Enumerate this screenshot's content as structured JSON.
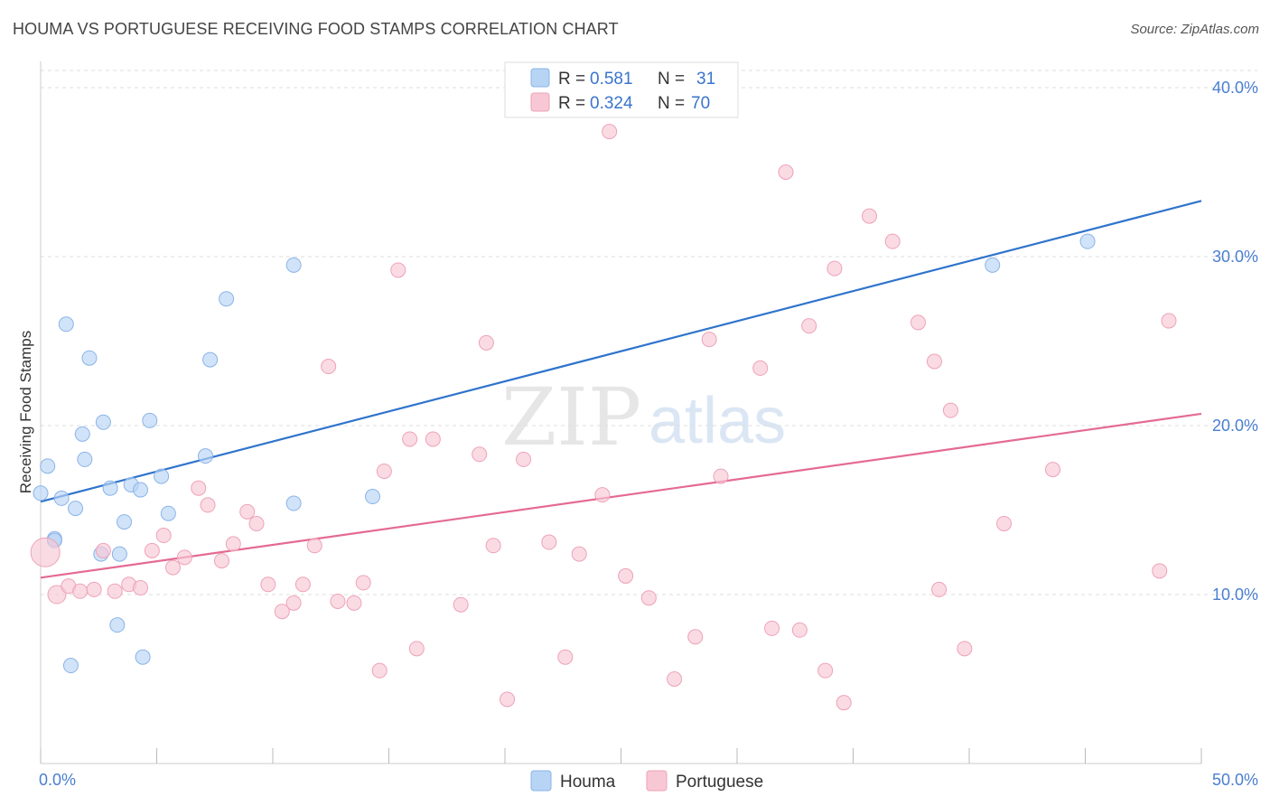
{
  "title": "HOUMA VS PORTUGUESE RECEIVING FOOD STAMPS CORRELATION CHART",
  "source": "Source: ZipAtlas.com",
  "watermark": {
    "zip": "ZIP",
    "atlas": "atlas"
  },
  "colors": {
    "houma_fill": "#b8d4f5",
    "houma_stroke": "#8ab4e8",
    "houma_line": "#2f74cc",
    "port_fill": "#f8c7d5",
    "port_stroke": "#eea2b8",
    "port_line": "#e46a94",
    "tick_text": "#4a7ed0",
    "grid": "#dddddd"
  },
  "legend": {
    "rows": [
      {
        "r_label": "R =",
        "r_value": "0.581",
        "n_label": "N =",
        "n_value": "31"
      },
      {
        "r_label": "R =",
        "r_value": "0.324",
        "n_label": "N =",
        "n_value": "70"
      }
    ]
  },
  "chart_data": {
    "type": "scatter",
    "title": "HOUMA VS PORTUGUESE RECEIVING FOOD STAMPS CORRELATION CHART",
    "xlabel": "",
    "ylabel": "Receiving Food Stamps",
    "xlim": [
      0,
      50
    ],
    "ylim": [
      0,
      40
    ],
    "x_tick_labels": [
      "0.0%",
      "50.0%"
    ],
    "y_ticks": [
      10,
      20,
      30,
      40
    ],
    "y_tick_labels": [
      "10.0%",
      "20.0%",
      "30.0%",
      "40.0%"
    ],
    "grid": true,
    "legend_position": "top-center",
    "series": [
      {
        "name": "Houma",
        "r": 0.581,
        "n": 31,
        "trend": [
          [
            0,
            15.5
          ],
          [
            50,
            33.3
          ]
        ],
        "points": [
          [
            0.0,
            16.0
          ],
          [
            0.3,
            17.6
          ],
          [
            0.6,
            13.3
          ],
          [
            0.9,
            15.7
          ],
          [
            1.1,
            26.0
          ],
          [
            1.3,
            5.8
          ],
          [
            1.5,
            15.1
          ],
          [
            1.8,
            19.5
          ],
          [
            1.9,
            18.0
          ],
          [
            2.1,
            24.0
          ],
          [
            2.7,
            20.2
          ],
          [
            2.6,
            12.4
          ],
          [
            3.0,
            16.3
          ],
          [
            3.3,
            8.2
          ],
          [
            3.4,
            12.4
          ],
          [
            3.6,
            14.3
          ],
          [
            3.9,
            16.5
          ],
          [
            4.3,
            16.2
          ],
          [
            4.4,
            6.3
          ],
          [
            4.7,
            20.3
          ],
          [
            5.2,
            17.0
          ],
          [
            5.5,
            14.8
          ],
          [
            7.1,
            18.2
          ],
          [
            7.3,
            23.9
          ],
          [
            8.0,
            27.5
          ],
          [
            10.9,
            29.5
          ],
          [
            10.9,
            15.4
          ],
          [
            14.3,
            15.8
          ],
          [
            41.0,
            29.5
          ],
          [
            45.1,
            30.9
          ],
          [
            0.6,
            13.2
          ]
        ]
      },
      {
        "name": "Portuguese",
        "r": 0.324,
        "n": 70,
        "trend": [
          [
            0,
            11.0
          ],
          [
            50,
            20.7
          ]
        ],
        "points": [
          [
            0.2,
            12.5
          ],
          [
            0.7,
            10.0
          ],
          [
            1.2,
            10.5
          ],
          [
            1.7,
            10.2
          ],
          [
            2.3,
            10.3
          ],
          [
            2.7,
            12.6
          ],
          [
            3.2,
            10.2
          ],
          [
            3.8,
            10.6
          ],
          [
            4.3,
            10.4
          ],
          [
            4.8,
            12.6
          ],
          [
            5.3,
            13.5
          ],
          [
            5.7,
            11.6
          ],
          [
            6.2,
            12.2
          ],
          [
            6.8,
            16.3
          ],
          [
            7.2,
            15.3
          ],
          [
            7.8,
            12.0
          ],
          [
            8.3,
            13.0
          ],
          [
            8.9,
            14.9
          ],
          [
            9.3,
            14.2
          ],
          [
            9.8,
            10.6
          ],
          [
            10.4,
            9.0
          ],
          [
            10.9,
            9.5
          ],
          [
            11.3,
            10.6
          ],
          [
            11.8,
            12.9
          ],
          [
            12.4,
            23.5
          ],
          [
            12.8,
            9.6
          ],
          [
            13.5,
            9.5
          ],
          [
            13.9,
            10.7
          ],
          [
            14.6,
            5.5
          ],
          [
            14.8,
            17.3
          ],
          [
            15.4,
            29.2
          ],
          [
            15.9,
            19.2
          ],
          [
            16.2,
            6.8
          ],
          [
            16.9,
            19.2
          ],
          [
            18.1,
            9.4
          ],
          [
            18.9,
            18.3
          ],
          [
            19.2,
            24.9
          ],
          [
            19.5,
            12.9
          ],
          [
            20.1,
            3.8
          ],
          [
            20.8,
            18.0
          ],
          [
            21.9,
            13.1
          ],
          [
            22.6,
            6.3
          ],
          [
            23.2,
            12.4
          ],
          [
            24.2,
            15.9
          ],
          [
            25.2,
            11.1
          ],
          [
            26.2,
            9.8
          ],
          [
            27.3,
            5.0
          ],
          [
            28.2,
            7.5
          ],
          [
            28.8,
            25.1
          ],
          [
            29.3,
            17.0
          ],
          [
            31.0,
            23.4
          ],
          [
            31.5,
            8.0
          ],
          [
            32.1,
            35.0
          ],
          [
            32.7,
            7.9
          ],
          [
            33.1,
            25.9
          ],
          [
            33.8,
            5.5
          ],
          [
            34.2,
            29.3
          ],
          [
            34.6,
            3.6
          ],
          [
            35.7,
            32.4
          ],
          [
            36.7,
            30.9
          ],
          [
            37.8,
            26.1
          ],
          [
            38.5,
            23.8
          ],
          [
            38.7,
            10.3
          ],
          [
            39.2,
            20.9
          ],
          [
            39.8,
            6.8
          ],
          [
            41.5,
            14.2
          ],
          [
            43.6,
            17.4
          ],
          [
            48.2,
            11.4
          ],
          [
            48.6,
            26.2
          ],
          [
            24.5,
            37.4
          ]
        ]
      }
    ]
  }
}
